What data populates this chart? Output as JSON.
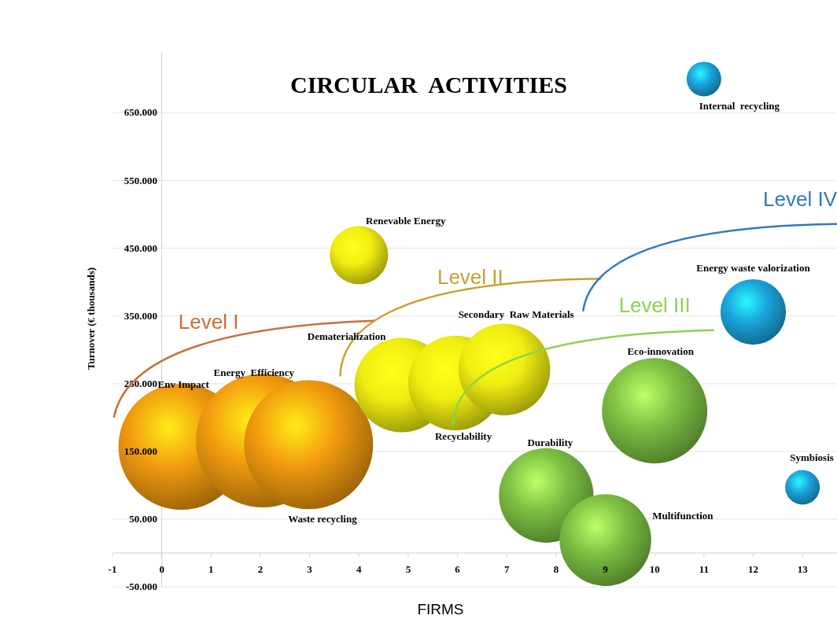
{
  "chart_data": {
    "type": "bubble",
    "title": "CIRCULAR  ACTIVITIES",
    "xlabel": "FIRMS",
    "ylabel": "Turnover (€ thousands)",
    "xlim": [
      -1,
      13.7
    ],
    "xticks": [
      -1,
      0,
      1,
      2,
      3,
      4,
      5,
      6,
      7,
      8,
      9,
      10,
      11,
      12,
      13
    ],
    "ylim": [
      -50000,
      740000
    ],
    "yticks": [
      {
        "value": -50000,
        "label": "-50.000"
      },
      {
        "value": 50000,
        "label": "50.000"
      },
      {
        "value": 150000,
        "label": "150.000"
      },
      {
        "value": 250000,
        "label": "250.000"
      },
      {
        "value": 350000,
        "label": "350.000"
      },
      {
        "value": 450000,
        "label": "450.000"
      },
      {
        "value": 550000,
        "label": "550.000"
      },
      {
        "value": 650000,
        "label": "650.000"
      }
    ],
    "grid": "y",
    "series": [
      {
        "color": "#f29b0f",
        "x": [
          0.4,
          2.05,
          2.98
        ],
        "values": [
          157000,
          166000,
          160000
        ],
        "sizes": [
          0.89,
          1,
          0.93
        ]
      },
      {
        "color": "#f0ee10",
        "x": [
          4.87,
          5.96,
          6.95,
          4.0
        ],
        "values": [
          248000,
          251000,
          271000,
          440000
        ],
        "sizes": [
          0.5,
          0.5,
          0.47,
          0.19
        ]
      },
      {
        "color": "#7cc043",
        "x": [
          10.0,
          7.8,
          9.0
        ],
        "values": [
          210000,
          85000,
          19000
        ],
        "sizes": [
          0.62,
          0.5,
          0.47
        ]
      },
      {
        "color": "#1ba3dc",
        "x": [
          11.0,
          12.0,
          13.0
        ],
        "values": [
          700000,
          356000,
          97000
        ],
        "sizes": [
          0.067,
          0.24,
          0.067
        ]
      }
    ],
    "annotations": [
      "Env Impact",
      "Energy  Efficiency",
      "Waste recycling",
      "Dematerialization",
      "Recyclability",
      "Secondary  Raw Materials",
      "Renevable Energy",
      "Eco-innovation",
      "Durability",
      "Multifunction",
      "Internal  recycling",
      "Energy waste valorization",
      "Symbiosis",
      "Level I",
      "Level II",
      "Level III",
      "Level IV"
    ]
  }
}
